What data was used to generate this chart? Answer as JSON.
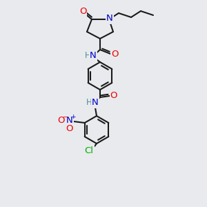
{
  "bg_color": "#e8eaed",
  "bond_color": "#1a1a1a",
  "atom_colors": {
    "O": "#ee0000",
    "N": "#0000cc",
    "Cl": "#00aa00",
    "H_teal": "#4a9090",
    "C": "#1a1a1a"
  },
  "lw": 1.5
}
